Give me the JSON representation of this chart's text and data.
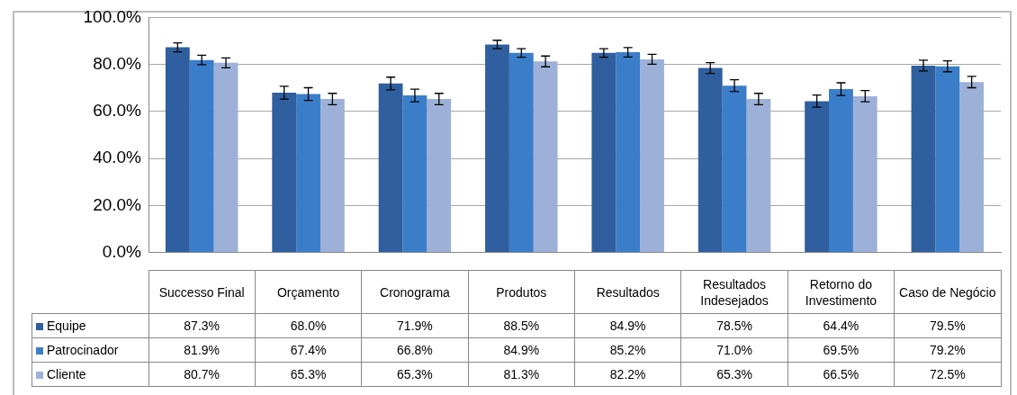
{
  "chart_data": {
    "type": "bar",
    "categories": [
      "Successo Final",
      "Orçamento",
      "Cronograma",
      "Produtos",
      "Resultados",
      "Resultados Indesejados",
      "Retorno do Investimento",
      "Caso de Negócio"
    ],
    "series": [
      {
        "name": "Equipe",
        "color": "#2f5f9e",
        "values": [
          87.3,
          68.0,
          71.9,
          88.5,
          84.9,
          78.5,
          64.4,
          79.5
        ],
        "errors": [
          1.9,
          2.7,
          2.7,
          1.8,
          1.8,
          2.3,
          2.6,
          2.3
        ],
        "value_labels": [
          "87.3%",
          "68.0%",
          "71.9%",
          "88.5%",
          "84.9%",
          "78.5%",
          "64.4%",
          "79.5%"
        ]
      },
      {
        "name": "Patrocinador",
        "color": "#3a7dc9",
        "values": [
          81.9,
          67.4,
          66.8,
          84.9,
          85.2,
          71.0,
          69.5,
          79.2
        ],
        "errors": [
          2.0,
          2.7,
          2.7,
          1.8,
          2.0,
          2.5,
          2.7,
          2.3
        ],
        "value_labels": [
          "81.9%",
          "67.4%",
          "66.8%",
          "84.9%",
          "85.2%",
          "71.0%",
          "69.5%",
          "79.2%"
        ]
      },
      {
        "name": "Cliente",
        "color": "#9db1d8",
        "values": [
          80.7,
          65.3,
          65.3,
          81.3,
          82.2,
          65.3,
          66.5,
          72.5
        ],
        "errors": [
          2.1,
          2.4,
          2.4,
          2.3,
          2.1,
          2.4,
          2.4,
          2.4
        ],
        "value_labels": [
          "80.7%",
          "65.3%",
          "65.3%",
          "81.3%",
          "82.2%",
          "65.3%",
          "66.5%",
          "72.5%"
        ]
      }
    ],
    "ylim": [
      0,
      100
    ],
    "yticks": [
      {
        "value": 0,
        "label": "0.0%"
      },
      {
        "value": 20,
        "label": "20.0%"
      },
      {
        "value": 40,
        "label": "40.0%"
      },
      {
        "value": 60,
        "label": "60.0%"
      },
      {
        "value": 80,
        "label": "80.0%"
      },
      {
        "value": 100,
        "label": "100.0%"
      }
    ],
    "grid": "y",
    "legend": "bottom",
    "data_labels": true
  }
}
